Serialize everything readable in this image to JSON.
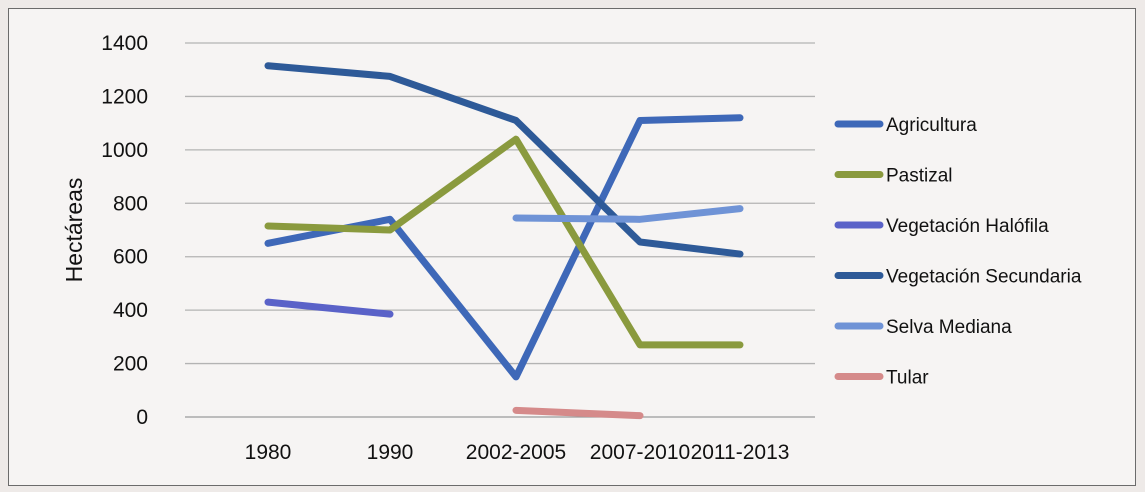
{
  "chart_data": {
    "type": "line",
    "title": "",
    "xlabel": "",
    "ylabel": "Hectáreas",
    "categories": [
      "1980",
      "1990",
      "2002-2005",
      "2007-2010",
      "2011-2013"
    ],
    "ylim": [
      0,
      1400
    ],
    "yticks": [
      0,
      200,
      400,
      600,
      800,
      1000,
      1200,
      1400
    ],
    "grid": "horizontal",
    "legend_position": "right",
    "series": [
      {
        "name": "Agricultura",
        "color": "#3e68b8",
        "values": [
          650,
          740,
          150,
          1110,
          1120
        ]
      },
      {
        "name": "Pastizal",
        "color": "#8a9a3e",
        "values": [
          715,
          700,
          1040,
          270,
          270
        ]
      },
      {
        "name": "Vegetación Halófila",
        "color": "#5a62c8",
        "values": [
          430,
          385,
          null,
          null,
          null
        ]
      },
      {
        "name": "Vegetación Secundaria",
        "color": "#2e5a98",
        "values": [
          1315,
          1275,
          1110,
          655,
          610
        ]
      },
      {
        "name": "Selva Mediana",
        "color": "#6f93d6",
        "values": [
          null,
          null,
          745,
          740,
          780
        ]
      },
      {
        "name": "Tular",
        "color": "#d58a8a",
        "values": [
          null,
          null,
          25,
          5,
          null
        ]
      }
    ]
  }
}
